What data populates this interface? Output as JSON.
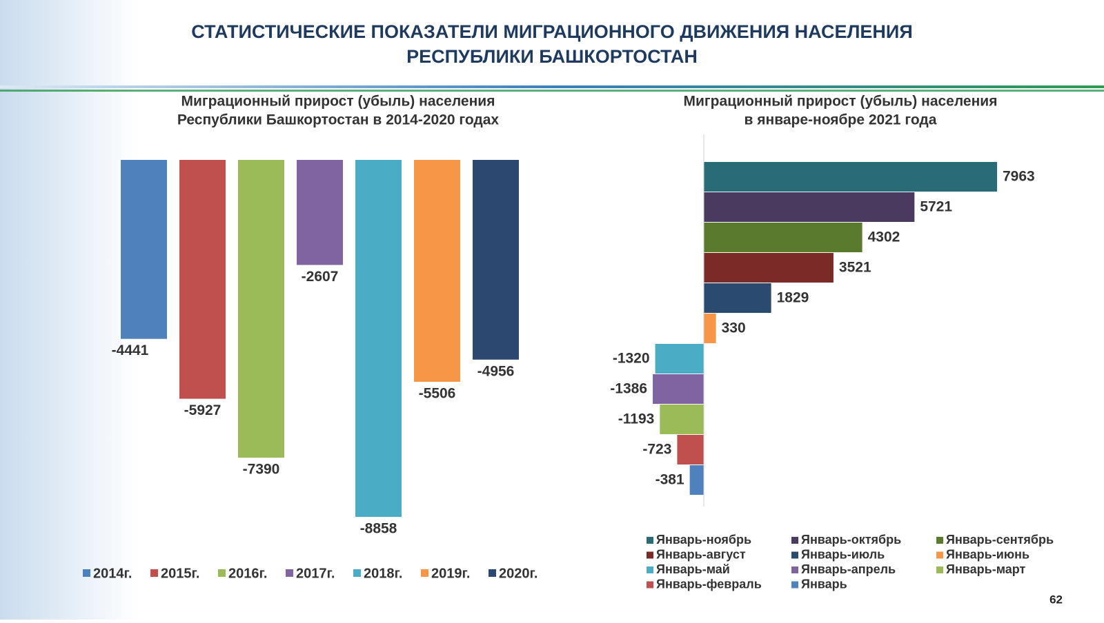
{
  "title": [
    "СТАТИСТИЧЕСКИЕ ПОКАЗАТЕЛИ МИГРАЦИОННОГО ДВИЖЕНИЯ НАСЕЛЕНИЯ",
    "РЕСПУБЛИКИ БАШКОРТОСТАН"
  ],
  "page_number": "62",
  "chart_data": [
    {
      "type": "bar",
      "title": [
        "Миграционный прирост (убыль) населения",
        "Республики Башкортостан в 2014-2020 годах"
      ],
      "categories": [
        "2014г.",
        "2015г.",
        "2016г.",
        "2017г.",
        "2018г.",
        "2019г.",
        "2020г."
      ],
      "values": [
        -4441,
        -5927,
        -7390,
        -2607,
        -8858,
        -5506,
        -4956
      ],
      "colors": [
        "#4f81bd",
        "#c0504d",
        "#9bbb59",
        "#8064a2",
        "#4bacc6",
        "#f79646",
        "#2c4770"
      ],
      "legend": "bottom"
    },
    {
      "type": "hbar",
      "title": [
        "Миграционный прирост (убыль) населения",
        "в январе-ноябре 2021 года"
      ],
      "categories": [
        "Январь-ноябрь",
        "Январь-октябрь",
        "Январь-сентябрь",
        "Январь-август",
        "Январь-июль",
        "Январь-июнь",
        "Январь-май",
        "Январь-апрель",
        "Январь-март",
        "Январь-февраль",
        "Январь"
      ],
      "values": [
        7963,
        5721,
        4302,
        3521,
        1829,
        330,
        -1320,
        -1386,
        -1193,
        -723,
        -381
      ],
      "colors": [
        "#2a6b78",
        "#4b3a60",
        "#5a7a2e",
        "#7a2a27",
        "#2a4a70",
        "#f79646",
        "#4bacc6",
        "#8064a2",
        "#9bbb59",
        "#c0504d",
        "#4f81bd"
      ],
      "legend": "bottom"
    }
  ]
}
